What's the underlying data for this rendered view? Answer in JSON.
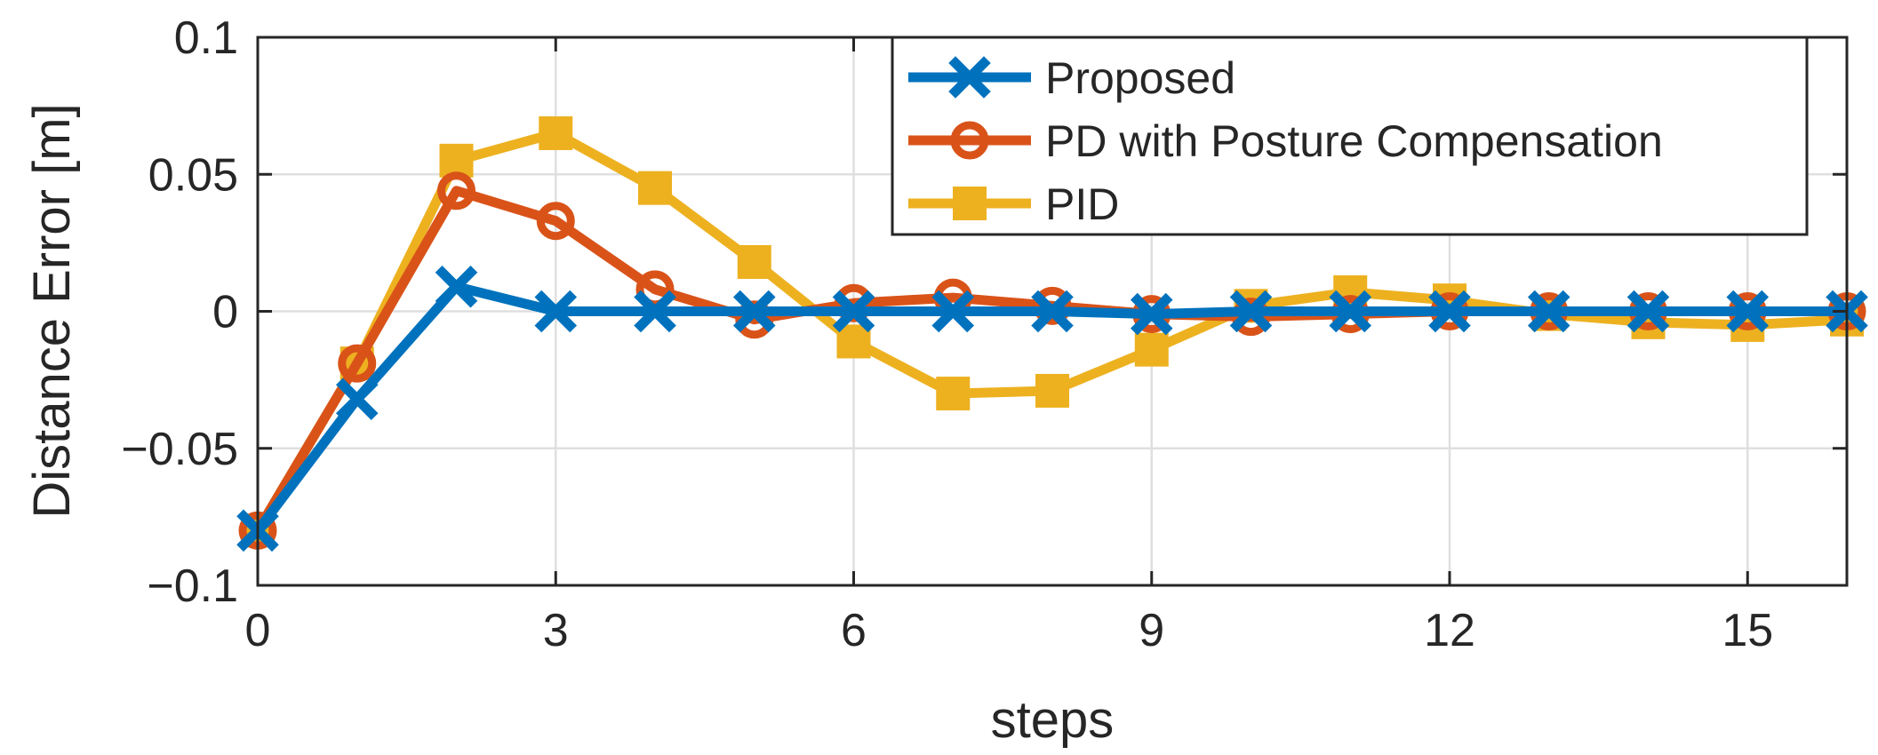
{
  "chart_data": {
    "type": "line",
    "xlabel": "steps",
    "ylabel": "Distance Error [m]",
    "xlim": [
      0,
      16
    ],
    "ylim": [
      -0.1,
      0.1
    ],
    "xticks": [
      0,
      3,
      6,
      9,
      12,
      15
    ],
    "xtick_labels": [
      "0",
      "3",
      "6",
      "9",
      "12",
      "15"
    ],
    "yticks": [
      -0.1,
      -0.05,
      0,
      0.05,
      0.1
    ],
    "ytick_labels": [
      "−0.1",
      "−0.05",
      "0",
      "0.05",
      "0.1"
    ],
    "grid": true,
    "legend_position": "top-right",
    "x": [
      0,
      1,
      2,
      3,
      4,
      5,
      6,
      7,
      8,
      9,
      10,
      11,
      12,
      13,
      14,
      15,
      16
    ],
    "series": [
      {
        "name": "Proposed",
        "color": "#0072BD",
        "marker": "x",
        "values": [
          -0.08,
          -0.032,
          0.009,
          0.0,
          0.0,
          0.0,
          0.0,
          0.0,
          0.0,
          -0.001,
          0.0,
          0.0,
          0.0,
          0.0,
          0.0,
          0.0,
          0.0
        ]
      },
      {
        "name": "PD with Posture Compensation",
        "color": "#D95319",
        "marker": "circle",
        "values": [
          -0.08,
          -0.019,
          0.044,
          0.033,
          0.008,
          -0.003,
          0.003,
          0.005,
          0.002,
          -0.001,
          -0.002,
          -0.001,
          0.0,
          0.0,
          0.0,
          0.0,
          0.0
        ]
      },
      {
        "name": "PID",
        "color": "#EDB120",
        "marker": "square",
        "values": [
          -0.08,
          -0.019,
          0.055,
          0.065,
          0.045,
          0.018,
          -0.011,
          -0.03,
          -0.029,
          -0.014,
          0.002,
          0.007,
          0.004,
          -0.001,
          -0.004,
          -0.005,
          -0.003
        ]
      }
    ]
  }
}
